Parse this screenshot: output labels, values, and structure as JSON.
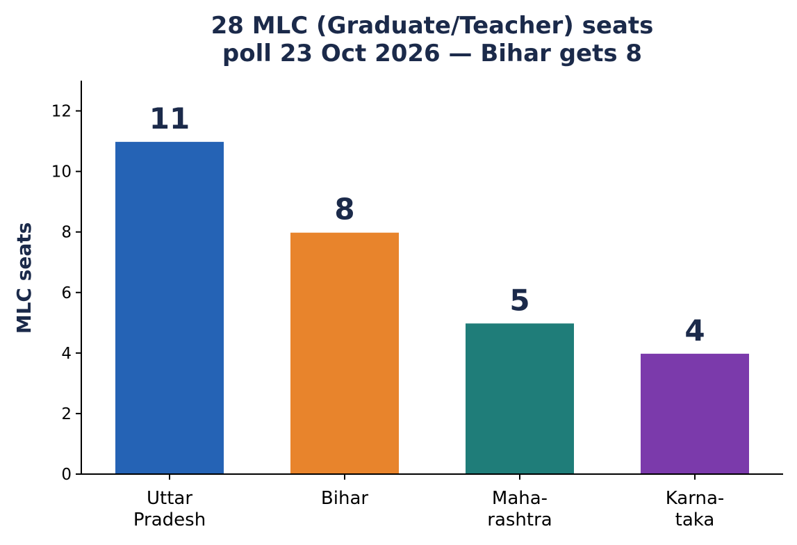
{
  "chart_data": {
    "type": "bar",
    "title_lines": [
      "28 MLC (Graduate/Teacher) seats",
      "poll 23 Oct 2026 — Bihar gets 8"
    ],
    "ylabel": "MLC seats",
    "xlabel": "",
    "categories": [
      [
        "Uttar",
        "Pradesh"
      ],
      [
        "Bihar"
      ],
      [
        "Maha-",
        "rashtra"
      ],
      [
        "Karna-",
        "taka"
      ]
    ],
    "values": [
      11,
      8,
      5,
      4
    ],
    "value_labels": [
      "11",
      "8",
      "5",
      "4"
    ],
    "colors": [
      "#2563b5",
      "#e8842c",
      "#1f7d79",
      "#7b3aab"
    ],
    "ylim": [
      0,
      13
    ],
    "yticks": [
      0,
      2,
      4,
      6,
      8,
      10,
      12
    ],
    "grid": false,
    "legend": "none"
  }
}
